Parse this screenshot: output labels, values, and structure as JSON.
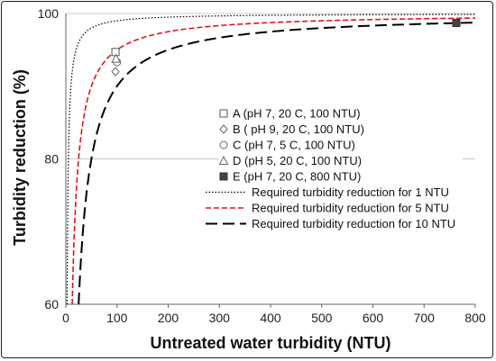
{
  "chart_data": {
    "type": "scatter",
    "xlabel": "Untreated water turbidity (NTU)",
    "ylabel": "Turbidity reduction (%)",
    "xlim": [
      0,
      800
    ],
    "ylim": [
      60,
      100
    ],
    "x_ticks": [
      0,
      100,
      200,
      300,
      400,
      500,
      600,
      700,
      800
    ],
    "y_ticks": [
      60,
      80,
      100
    ],
    "grid": "horizontal",
    "legend_position": "center-right",
    "points": [
      {
        "label": "A (pH 7, 20 C, 100 NTU)",
        "marker": "square",
        "x": 97,
        "y": 94.7
      },
      {
        "label": "B ( pH 9, 20 C, 100 NTU)",
        "marker": "diamond",
        "x": 97,
        "y": 92.0
      },
      {
        "label": "C (pH 7, 5 C, 100 NTU)",
        "marker": "circle",
        "x": 100,
        "y": 93.3
      },
      {
        "label": "D (pH 5, 20 C, 100 NTU)",
        "marker": "triangle",
        "x": 98,
        "y": 93.8
      },
      {
        "label": "E (pH 7, 20 C, 800 NTU)",
        "marker": "filled-square",
        "x": 763,
        "y": 98.7
      }
    ],
    "lines": [
      {
        "label": "Required turbidity reduction for 1 NTU",
        "target_ntu": 1,
        "style": "dotted",
        "color": "#000000"
      },
      {
        "label": "Required turbidity reduction for 5 NTU",
        "target_ntu": 5,
        "style": "dashed",
        "color": "#e8101a"
      },
      {
        "label": "Required turbidity reduction for 10 NTU",
        "target_ntu": 10,
        "style": "long-dashed",
        "color": "#000000"
      }
    ]
  }
}
